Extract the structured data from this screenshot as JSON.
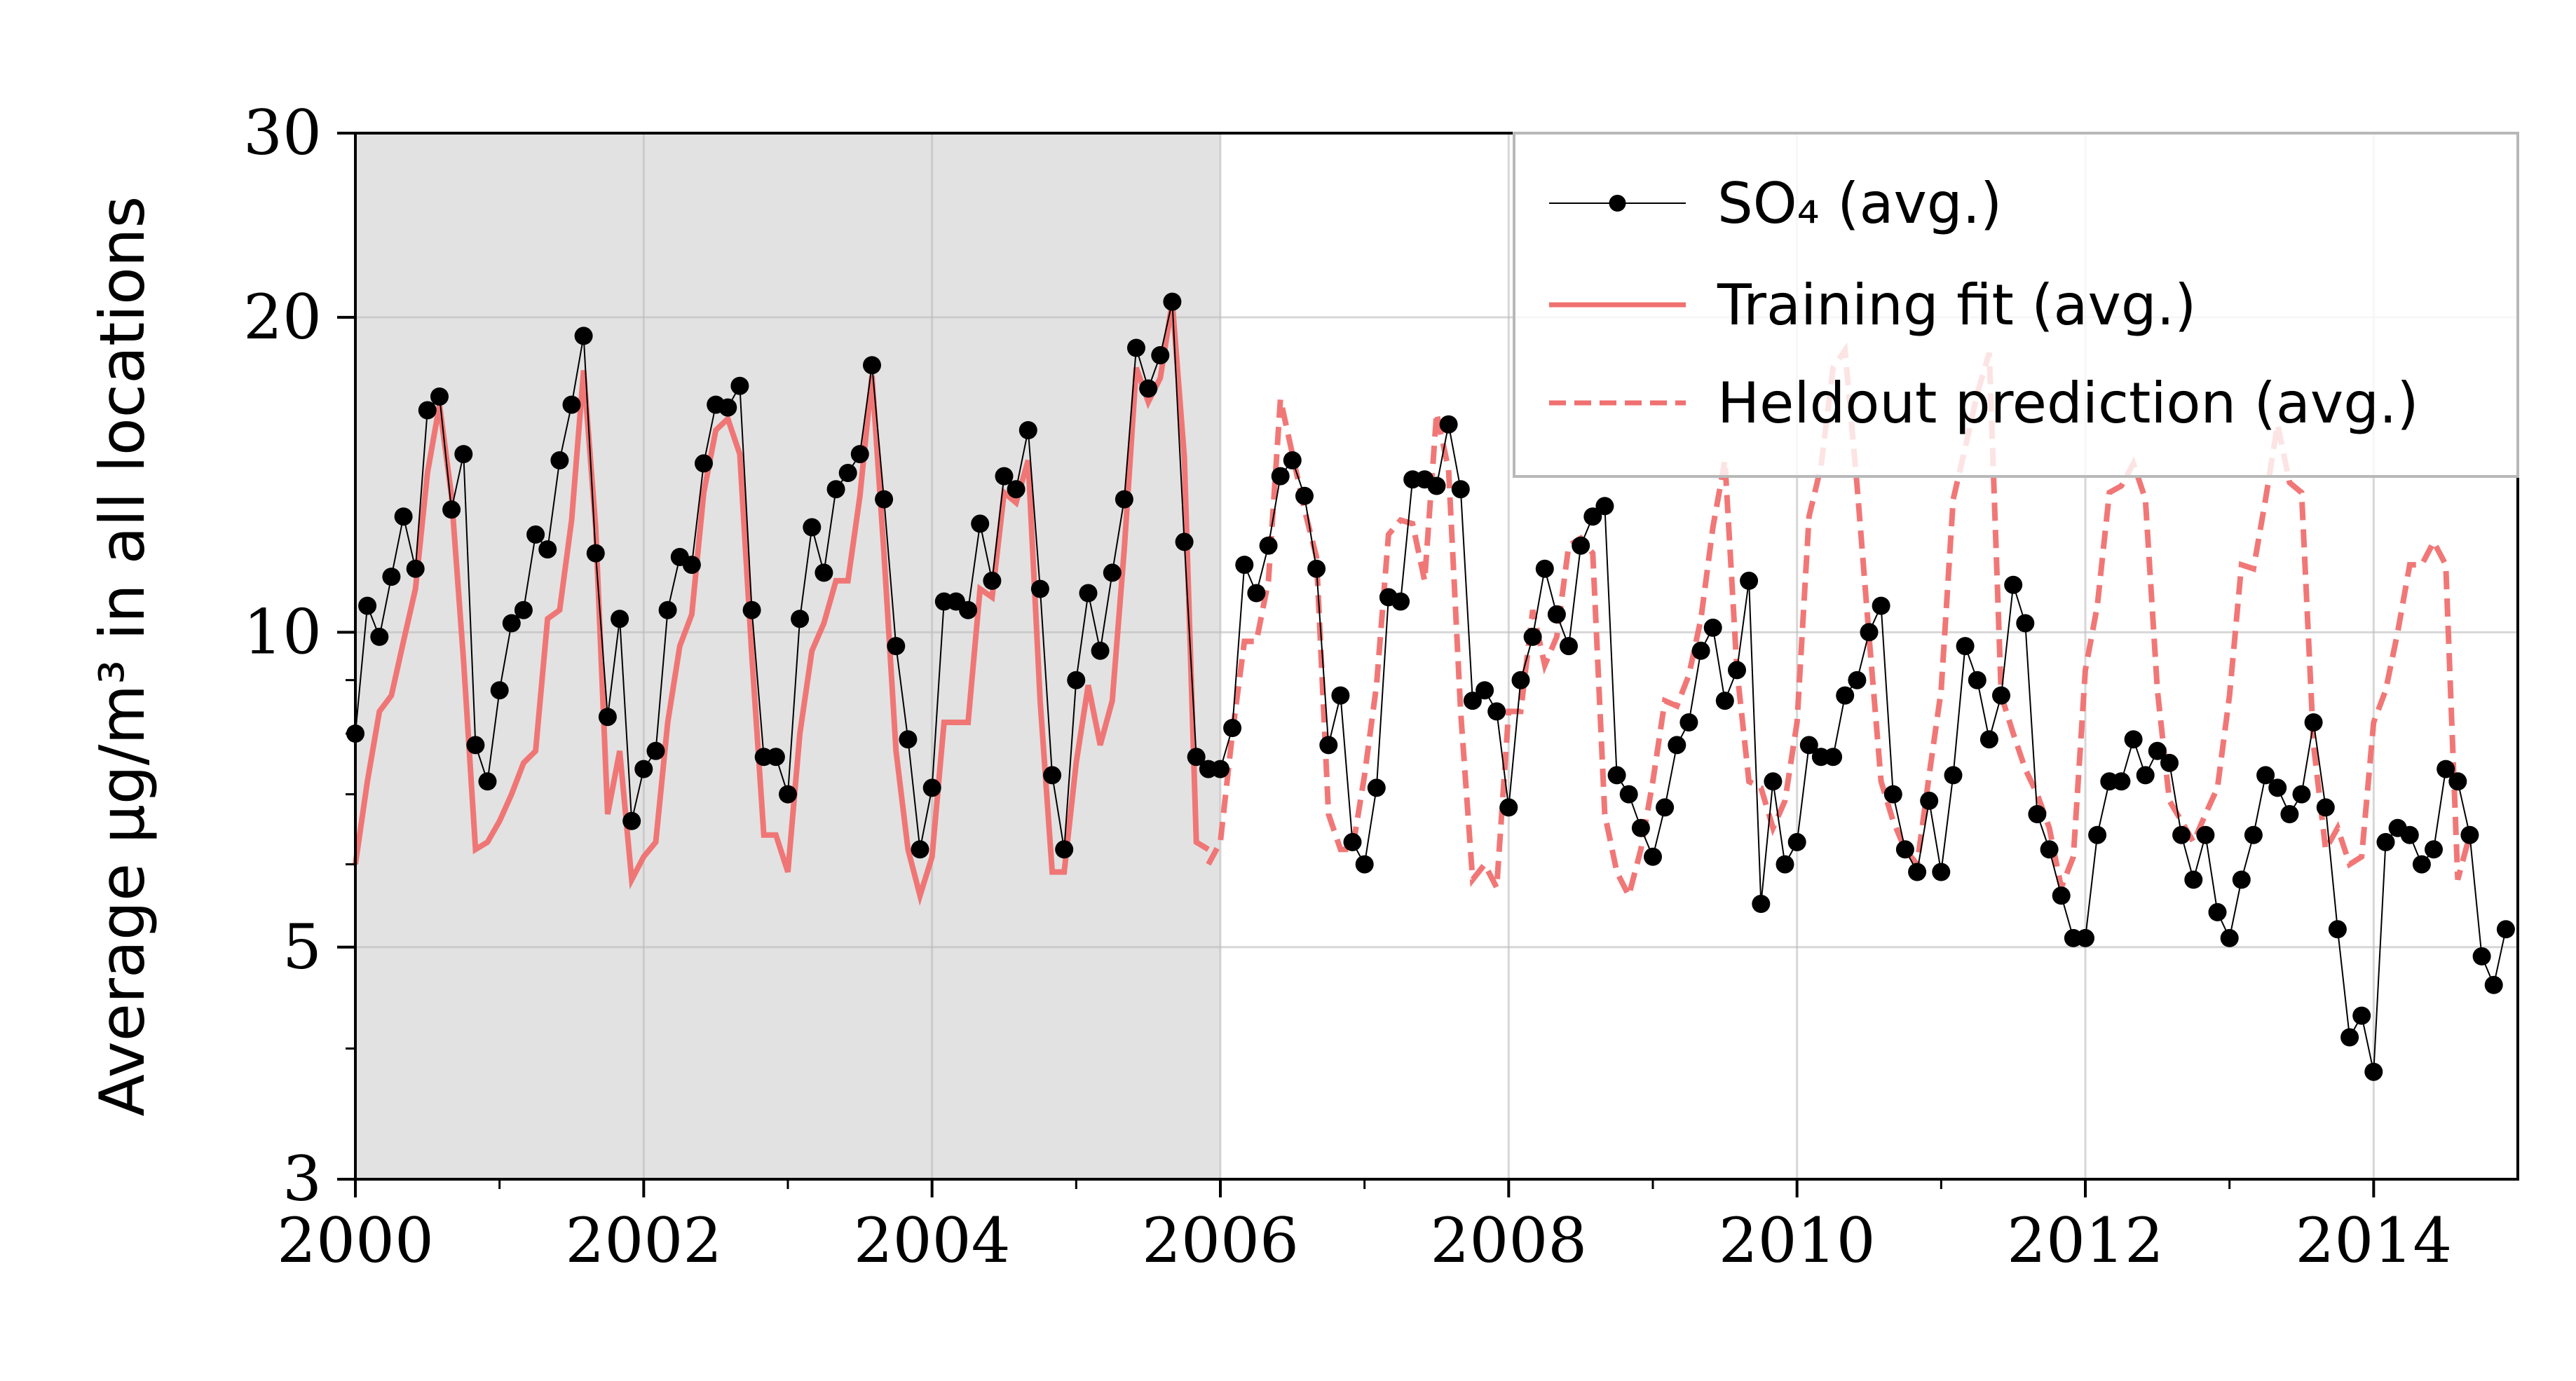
{
  "chart_data": {
    "type": "line",
    "ylabel": "Average μg/m³ in all locations",
    "xlabel": "",
    "title": "",
    "x_start": "2000-01",
    "x_step": "month",
    "xlim": [
      2000,
      2015
    ],
    "ylim": [
      3,
      30
    ],
    "y_scale": "log",
    "x_ticks": [
      2000,
      2002,
      2004,
      2006,
      2008,
      2010,
      2012,
      2014
    ],
    "y_ticks": [
      3,
      5,
      10,
      20,
      30
    ],
    "grid": true,
    "legend_position": "upper-right",
    "shaded_region": {
      "x": [
        2000,
        2006
      ],
      "color": "#e2e2e2"
    },
    "colors": {
      "observed": "#000000",
      "fit": "#f07070",
      "prediction": "#f07070"
    },
    "series": [
      {
        "name": "SO₄ (avg.)",
        "style": "line-markers",
        "values": [
          8.0,
          10.6,
          9.9,
          11.3,
          12.9,
          11.5,
          16.3,
          16.8,
          13.1,
          14.8,
          7.8,
          7.2,
          8.8,
          10.2,
          10.5,
          12.4,
          12.0,
          14.6,
          16.5,
          19.2,
          11.9,
          8.3,
          10.3,
          6.6,
          7.4,
          7.7,
          10.5,
          11.8,
          11.6,
          14.5,
          16.5,
          16.4,
          17.2,
          10.5,
          7.6,
          7.6,
          7.0,
          10.3,
          12.6,
          11.4,
          13.7,
          14.2,
          14.8,
          18.0,
          13.4,
          9.7,
          7.9,
          6.2,
          7.1,
          10.7,
          10.7,
          10.5,
          12.7,
          11.2,
          14.1,
          13.7,
          15.6,
          11.0,
          7.3,
          6.2,
          9.0,
          10.9,
          9.6,
          11.4,
          13.4,
          18.7,
          17.1,
          18.4,
          20.7,
          12.2,
          7.6,
          7.4,
          7.4,
          8.1,
          11.6,
          10.9,
          12.1,
          14.1,
          14.6,
          13.5,
          11.5,
          7.8,
          8.7,
          6.3,
          6.0,
          7.1,
          10.8,
          10.7,
          14.0,
          14.0,
          13.8,
          15.8,
          13.7,
          8.6,
          8.8,
          8.4,
          6.8,
          9.0,
          9.9,
          11.5,
          10.4,
          9.7,
          12.1,
          12.9,
          13.2,
          7.3,
          7.0,
          6.5,
          6.1,
          6.8,
          7.8,
          8.2,
          9.6,
          10.1,
          8.6,
          9.2,
          11.2,
          5.5,
          7.2,
          6.0,
          6.3,
          7.8,
          7.6,
          7.6,
          8.7,
          9.0,
          10.0,
          10.6,
          7.0,
          6.2,
          5.9,
          6.9,
          5.9,
          7.3,
          9.7,
          9.0,
          7.9,
          8.7,
          11.1,
          10.2,
          6.7,
          6.2,
          5.6,
          5.1,
          5.1,
          6.4,
          7.2,
          7.2,
          7.9,
          7.3,
          7.7,
          7.5,
          6.4,
          5.8,
          6.4,
          5.4,
          5.1,
          5.8,
          6.4,
          7.3,
          7.1,
          6.7,
          7.0,
          8.2,
          6.8,
          5.2,
          4.1,
          4.3,
          3.8,
          6.3,
          6.5,
          6.4,
          6.0,
          6.2,
          7.4,
          7.2,
          6.4,
          4.9,
          4.6,
          5.2
        ]
      },
      {
        "name": "Training fit (avg.)",
        "style": "solid",
        "values": [
          6.0,
          7.2,
          8.4,
          8.7,
          9.8,
          11.0,
          14.2,
          16.5,
          13.5,
          9.4,
          6.2,
          6.3,
          6.6,
          7.0,
          7.5,
          7.7,
          10.3,
          10.5,
          12.8,
          17.8,
          12.6,
          6.7,
          7.7,
          5.8,
          6.1,
          6.3,
          8.2,
          9.7,
          10.4,
          13.6,
          15.6,
          16.0,
          14.8,
          9.5,
          6.4,
          6.4,
          5.9,
          8.0,
          9.6,
          10.2,
          11.2,
          11.2,
          13.5,
          17.6,
          11.9,
          7.7,
          6.2,
          5.6,
          6.1,
          8.2,
          8.2,
          8.2,
          11.0,
          10.8,
          13.6,
          13.3,
          14.6,
          8.6,
          5.9,
          5.9,
          7.5,
          8.9,
          7.8,
          8.6,
          12.0,
          17.9,
          16.6,
          17.5,
          20.7,
          14.7,
          6.3,
          6.2
        ]
      },
      {
        "name": "Heldout prediction (avg.)",
        "style": "dashed",
        "values": [
          6.0,
          6.3,
          8.0,
          9.8,
          9.8,
          11.2,
          16.7,
          14.8,
          13.1,
          11.8,
          6.7,
          6.2,
          6.2,
          7.3,
          8.9,
          12.4,
          12.8,
          12.7,
          11.2,
          16.2,
          14.3,
          8.4,
          5.8,
          6.0,
          5.7,
          8.4,
          8.4,
          10.5,
          9.3,
          9.9,
          12.1,
          12.3,
          11.9,
          6.7,
          5.9,
          5.6,
          6.2,
          7.2,
          8.6,
          8.5,
          9.1,
          10.3,
          12.6,
          14.6,
          9.2,
          7.2,
          7.1,
          6.5,
          6.9,
          8.2,
          12.9,
          14.4,
          17.9,
          18.6,
          13.8,
          9.9,
          7.2,
          6.6,
          6.2,
          6.0,
          7.3,
          8.8,
          13.4,
          15.0,
          16.9,
          18.5,
          8.7,
          8.0,
          7.4,
          7.0,
          6.5,
          5.7,
          6.1,
          9.2,
          10.6,
          13.6,
          13.8,
          14.5,
          13.4,
          8.8,
          6.9,
          6.6,
          6.3,
          6.7,
          7.1,
          8.7,
          11.6,
          11.5,
          13.4,
          15.8,
          13.9,
          13.6,
          7.8,
          6.2,
          6.5,
          6.0,
          6.1,
          8.2,
          8.8,
          10.0,
          11.6,
          11.6,
          12.2,
          11.6,
          5.8,
          6.4
        ]
      }
    ]
  }
}
